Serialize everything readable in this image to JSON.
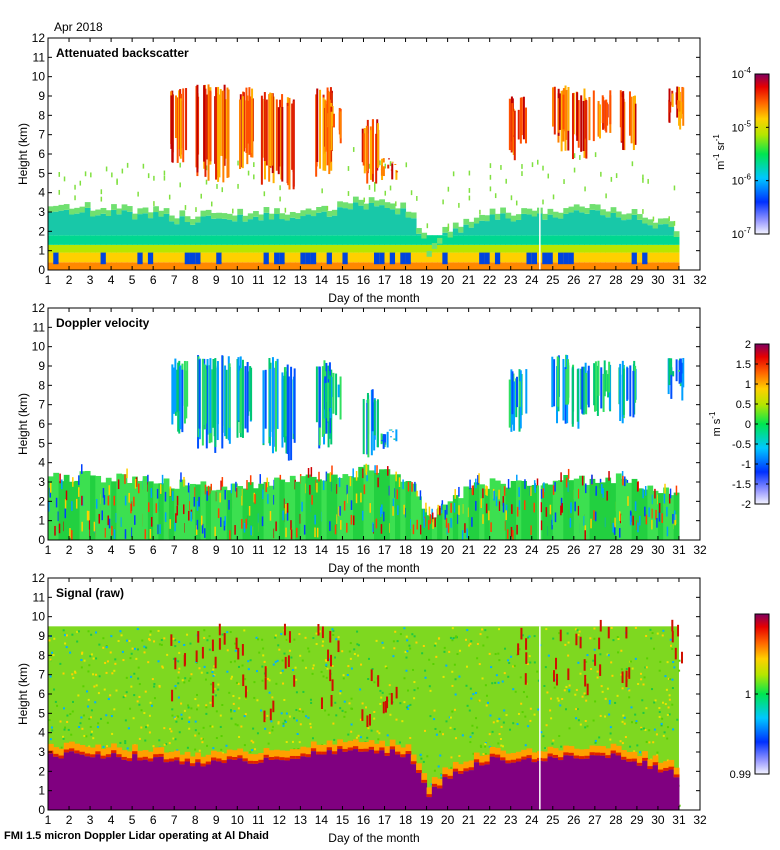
{
  "date_label": "Apr 2018",
  "footer": "FMI 1.5 micron Doppler Lidar operating at Al Dhaid",
  "chart_data": [
    {
      "type": "heatmap",
      "id": "backscatter",
      "title": "Attenuated backscatter",
      "xlabel": "Day of the month",
      "ylabel": "Height (km)",
      "xlim": [
        1,
        32
      ],
      "ylim": [
        0,
        12
      ],
      "x_ticks": [
        "1",
        "2",
        "3",
        "4",
        "5",
        "6",
        "7",
        "8",
        "9",
        "10",
        "11",
        "12",
        "13",
        "14",
        "15",
        "16",
        "17",
        "18",
        "19",
        "20",
        "21",
        "22",
        "23",
        "24",
        "25",
        "26",
        "27",
        "28",
        "29",
        "30",
        "31",
        "32"
      ],
      "y_ticks": [
        "0",
        "1",
        "2",
        "3",
        "4",
        "5",
        "6",
        "7",
        "8",
        "9",
        "10",
        "11",
        "12"
      ],
      "colorbar": {
        "scale": "log",
        "range": [
          1e-07,
          0.0001
        ],
        "tick_bases": [
          "10",
          "10",
          "10",
          "10"
        ],
        "tick_exps": [
          "-7",
          "-6",
          "-5",
          "-4"
        ],
        "tick_values": [
          -7,
          -6,
          -5,
          -4
        ],
        "unit_main": "m",
        "unit_exp1": "-1",
        "unit_mid": " sr",
        "unit_exp2": "-1"
      },
      "boundary_layer_top_km": [
        [
          1,
          3.2
        ],
        [
          3,
          3.3
        ],
        [
          5,
          3.1
        ],
        [
          7,
          2.9
        ],
        [
          9,
          2.8
        ],
        [
          11,
          3.0
        ],
        [
          13,
          3.2
        ],
        [
          15,
          3.4
        ],
        [
          16,
          3.6
        ],
        [
          18,
          3.2
        ],
        [
          19,
          1.2
        ],
        [
          20,
          2.2
        ],
        [
          22,
          3.0
        ],
        [
          24,
          3.0
        ],
        [
          26,
          3.1
        ],
        [
          28,
          3.2
        ],
        [
          31,
          2.2
        ]
      ],
      "cloud_days": [
        [
          7.2,
          9.5,
          5.5
        ],
        [
          8.4,
          9.6,
          4.6
        ],
        [
          9.2,
          9.6,
          4.5
        ],
        [
          10.3,
          9.5,
          5.2
        ],
        [
          11.5,
          9.5,
          4.4
        ],
        [
          12.3,
          9.1,
          4.0
        ],
        [
          14.1,
          9.5,
          4.7
        ],
        [
          14.5,
          8.8,
          6.0
        ],
        [
          16.3,
          7.8,
          4.2
        ],
        [
          17.2,
          5.8,
          4.6
        ],
        [
          23.3,
          9.0,
          5.5
        ],
        [
          25.3,
          9.6,
          6.0
        ],
        [
          26.3,
          9.4,
          5.6
        ],
        [
          27.3,
          9.3,
          6.4
        ],
        [
          28.5,
          9.3,
          6.0
        ],
        [
          30.8,
          9.5,
          7.2
        ]
      ]
    },
    {
      "type": "heatmap",
      "id": "doppler",
      "title": "Doppler velocity",
      "xlabel": "Day of the month",
      "ylabel": "Height (km)",
      "xlim": [
        1,
        32
      ],
      "ylim": [
        0,
        12
      ],
      "x_ticks": [
        "1",
        "2",
        "3",
        "4",
        "5",
        "6",
        "7",
        "8",
        "9",
        "10",
        "11",
        "12",
        "13",
        "14",
        "15",
        "16",
        "17",
        "18",
        "19",
        "20",
        "21",
        "22",
        "23",
        "24",
        "25",
        "26",
        "27",
        "28",
        "29",
        "30",
        "31",
        "32"
      ],
      "y_ticks": [
        "0",
        "1",
        "2",
        "3",
        "4",
        "5",
        "6",
        "7",
        "8",
        "9",
        "10",
        "11",
        "12"
      ],
      "colorbar": {
        "scale": "linear",
        "range": [
          -2,
          2
        ],
        "tick_labels": [
          "-2",
          "-1.5",
          "-1",
          "-0.5",
          "0",
          "0.5",
          "1",
          "1.5",
          "2"
        ],
        "tick_values": [
          -2,
          -1.5,
          -1,
          -0.5,
          0,
          0.5,
          1,
          1.5,
          2
        ],
        "unit_main": "m s",
        "unit_exp": "-1"
      }
    },
    {
      "type": "heatmap",
      "id": "signal",
      "title": "Signal (raw)",
      "xlabel": "Day of the month",
      "ylabel": "Height (km)",
      "xlim": [
        1,
        32
      ],
      "ylim": [
        0,
        12
      ],
      "max_height_km": 9.5,
      "x_ticks": [
        "1",
        "2",
        "3",
        "4",
        "5",
        "6",
        "7",
        "8",
        "9",
        "10",
        "11",
        "12",
        "13",
        "14",
        "15",
        "16",
        "17",
        "18",
        "19",
        "20",
        "21",
        "22",
        "23",
        "24",
        "25",
        "26",
        "27",
        "28",
        "29",
        "30",
        "31",
        "32"
      ],
      "y_ticks": [
        "0",
        "1",
        "2",
        "3",
        "4",
        "5",
        "6",
        "7",
        "8",
        "9",
        "10",
        "11",
        "12"
      ],
      "colorbar": {
        "scale": "linear",
        "range": [
          0.99,
          1.01
        ],
        "tick_labels": [
          "0.99",
          "1"
        ],
        "tick_values": [
          0.99,
          1.0
        ]
      }
    }
  ],
  "colors": {
    "jet": [
      "#7f007f",
      "#0000cc",
      "#0060ff",
      "#00c8ff",
      "#00e67d",
      "#66e600",
      "#e6e600",
      "#ff9900",
      "#e62000",
      "#99004d",
      "#800080"
    ]
  }
}
